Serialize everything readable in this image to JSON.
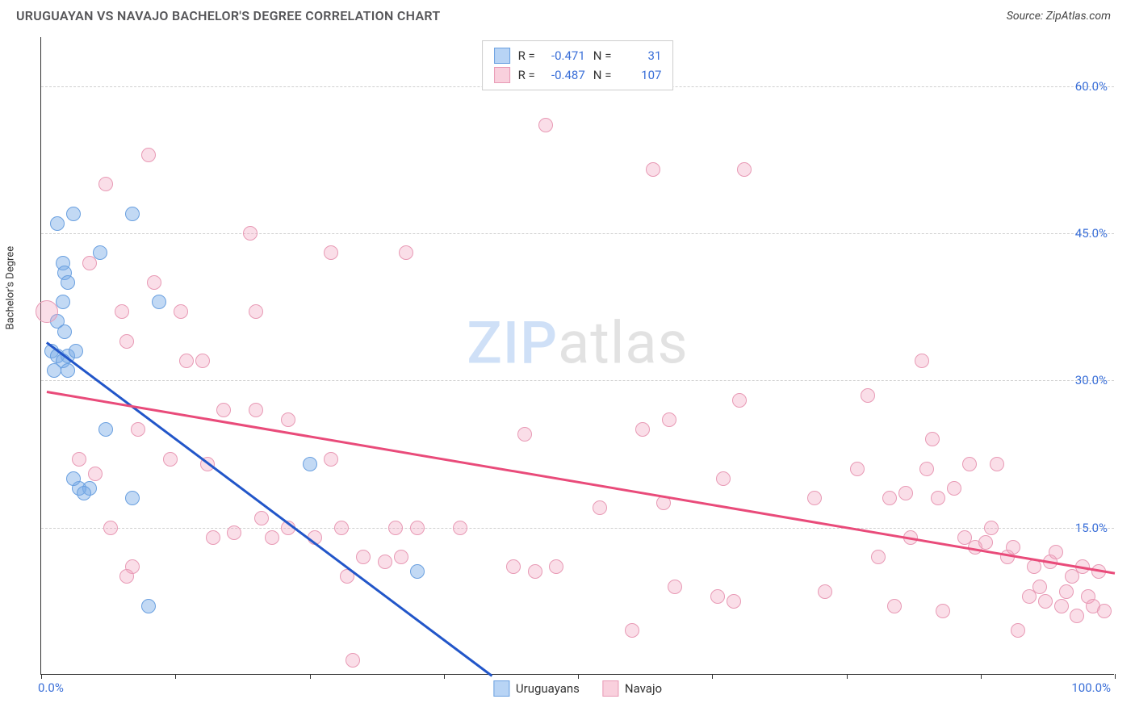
{
  "header": {
    "title": "URUGUAYAN VS NAVAJO BACHELOR'S DEGREE CORRELATION CHART",
    "source": "Source: ZipAtlas.com"
  },
  "chart": {
    "type": "scatter",
    "y_axis_label": "Bachelor's Degree",
    "background_color": "#ffffff",
    "grid_color": "#d0d0d0",
    "axis_color": "#333333",
    "xlim": [
      0,
      100
    ],
    "ylim": [
      0,
      65
    ],
    "y_ticks": [
      15,
      30,
      45,
      60
    ],
    "y_tick_labels": [
      "15.0%",
      "30.0%",
      "45.0%",
      "60.0%"
    ],
    "x_tick_positions": [
      0,
      12.5,
      25,
      37.5,
      50,
      62.5,
      75,
      87.5,
      100
    ],
    "x_tick_labels_visible": {
      "0": "0.0%",
      "100": "100.0%"
    },
    "tick_label_color": "#3a6fd8",
    "tick_label_fontsize": 15,
    "axis_label_fontsize": 13,
    "watermark": {
      "text_a": "ZIP",
      "text_b": "atlas",
      "color_a": "#cfe0f7",
      "color_b": "#e2e2e2",
      "fontsize": 72
    },
    "series": [
      {
        "name": "Uruguayans",
        "fill_color": "rgba(120,170,230,0.45)",
        "stroke_color": "#6aa0e0",
        "swatch_fill": "#b8d4f5",
        "swatch_border": "#6aa0e0",
        "marker_radius": 9,
        "trend": {
          "x1": 0.5,
          "y1": 34,
          "x2": 42,
          "y2": 0,
          "color": "#2256c9",
          "width": 2.5
        },
        "stats": {
          "R": "-0.471",
          "N": "31"
        },
        "points": [
          {
            "x": 3,
            "y": 47,
            "r": 9
          },
          {
            "x": 1.5,
            "y": 46,
            "r": 9
          },
          {
            "x": 8.5,
            "y": 47,
            "r": 9
          },
          {
            "x": 2,
            "y": 42,
            "r": 9
          },
          {
            "x": 2.2,
            "y": 41,
            "r": 9
          },
          {
            "x": 2.5,
            "y": 40,
            "r": 9
          },
          {
            "x": 5.5,
            "y": 43,
            "r": 9
          },
          {
            "x": 2,
            "y": 38,
            "r": 9
          },
          {
            "x": 1.5,
            "y": 36,
            "r": 9
          },
          {
            "x": 2.2,
            "y": 35,
            "r": 9
          },
          {
            "x": 1,
            "y": 33,
            "r": 9
          },
          {
            "x": 1.5,
            "y": 32.5,
            "r": 9
          },
          {
            "x": 2.5,
            "y": 32.5,
            "r": 9
          },
          {
            "x": 3.2,
            "y": 33,
            "r": 9
          },
          {
            "x": 2,
            "y": 32,
            "r": 9
          },
          {
            "x": 1.2,
            "y": 31,
            "r": 9
          },
          {
            "x": 2.5,
            "y": 31,
            "r": 9
          },
          {
            "x": 11,
            "y": 38,
            "r": 9
          },
          {
            "x": 6,
            "y": 25,
            "r": 9
          },
          {
            "x": 4.5,
            "y": 19,
            "r": 9
          },
          {
            "x": 3.5,
            "y": 19,
            "r": 9
          },
          {
            "x": 4,
            "y": 18.5,
            "r": 9
          },
          {
            "x": 8.5,
            "y": 18,
            "r": 9
          },
          {
            "x": 3,
            "y": 20,
            "r": 9
          },
          {
            "x": 25,
            "y": 21.5,
            "r": 9
          },
          {
            "x": 35,
            "y": 10.5,
            "r": 9
          },
          {
            "x": 10,
            "y": 7,
            "r": 9
          }
        ]
      },
      {
        "name": "Navajo",
        "fill_color": "rgba(240,160,190,0.35)",
        "stroke_color": "#e89ab5",
        "swatch_fill": "#f9d0dd",
        "swatch_border": "#e89ab5",
        "marker_radius": 9,
        "trend": {
          "x1": 0.5,
          "y1": 29,
          "x2": 100,
          "y2": 10.5,
          "color": "#e94b7a",
          "width": 2.5
        },
        "stats": {
          "R": "-0.487",
          "N": "107"
        },
        "points": [
          {
            "x": 0.5,
            "y": 37,
            "r": 14
          },
          {
            "x": 4.5,
            "y": 42,
            "r": 9
          },
          {
            "x": 10,
            "y": 53,
            "r": 9
          },
          {
            "x": 6,
            "y": 50,
            "r": 9
          },
          {
            "x": 10.5,
            "y": 40,
            "r": 9
          },
          {
            "x": 8,
            "y": 34,
            "r": 9
          },
          {
            "x": 7.5,
            "y": 37,
            "r": 9
          },
          {
            "x": 9,
            "y": 25,
            "r": 9
          },
          {
            "x": 3.5,
            "y": 22,
            "r": 9
          },
          {
            "x": 5,
            "y": 20.5,
            "r": 9
          },
          {
            "x": 6.5,
            "y": 15,
            "r": 9
          },
          {
            "x": 8.5,
            "y": 11,
            "r": 9
          },
          {
            "x": 8,
            "y": 10,
            "r": 9
          },
          {
            "x": 13,
            "y": 37,
            "r": 9
          },
          {
            "x": 13.5,
            "y": 32,
            "r": 9
          },
          {
            "x": 12,
            "y": 22,
            "r": 9
          },
          {
            "x": 15,
            "y": 32,
            "r": 9
          },
          {
            "x": 15.5,
            "y": 21.5,
            "r": 9
          },
          {
            "x": 16,
            "y": 14,
            "r": 9
          },
          {
            "x": 17,
            "y": 27,
            "r": 9
          },
          {
            "x": 18,
            "y": 14.5,
            "r": 9
          },
          {
            "x": 19.5,
            "y": 45,
            "r": 9
          },
          {
            "x": 20,
            "y": 37,
            "r": 9
          },
          {
            "x": 20,
            "y": 27,
            "r": 9
          },
          {
            "x": 20.5,
            "y": 16,
            "r": 9
          },
          {
            "x": 21.5,
            "y": 14,
            "r": 9
          },
          {
            "x": 23,
            "y": 26,
            "r": 9
          },
          {
            "x": 23,
            "y": 15,
            "r": 9
          },
          {
            "x": 25.5,
            "y": 14,
            "r": 9
          },
          {
            "x": 27,
            "y": 22,
            "r": 9
          },
          {
            "x": 27,
            "y": 43,
            "r": 9
          },
          {
            "x": 28,
            "y": 15,
            "r": 9
          },
          {
            "x": 28.5,
            "y": 10,
            "r": 9
          },
          {
            "x": 29,
            "y": 1.5,
            "r": 9
          },
          {
            "x": 30,
            "y": 12,
            "r": 9
          },
          {
            "x": 32,
            "y": 11.5,
            "r": 9
          },
          {
            "x": 33,
            "y": 15,
            "r": 9
          },
          {
            "x": 33.5,
            "y": 12,
            "r": 9
          },
          {
            "x": 34,
            "y": 43,
            "r": 9
          },
          {
            "x": 35,
            "y": 15,
            "r": 9
          },
          {
            "x": 39,
            "y": 15,
            "r": 9
          },
          {
            "x": 44,
            "y": 11,
            "r": 9
          },
          {
            "x": 45,
            "y": 24.5,
            "r": 9
          },
          {
            "x": 46,
            "y": 10.5,
            "r": 9
          },
          {
            "x": 47,
            "y": 56,
            "r": 9
          },
          {
            "x": 48,
            "y": 11,
            "r": 9
          },
          {
            "x": 52,
            "y": 17,
            "r": 9
          },
          {
            "x": 55,
            "y": 4.5,
            "r": 9
          },
          {
            "x": 56,
            "y": 25,
            "r": 9
          },
          {
            "x": 57,
            "y": 51.5,
            "r": 9
          },
          {
            "x": 58,
            "y": 17.5,
            "r": 9
          },
          {
            "x": 58.5,
            "y": 26,
            "r": 9
          },
          {
            "x": 59,
            "y": 9,
            "r": 9
          },
          {
            "x": 63,
            "y": 8,
            "r": 9
          },
          {
            "x": 63.5,
            "y": 20,
            "r": 9
          },
          {
            "x": 64.5,
            "y": 7.5,
            "r": 9
          },
          {
            "x": 65,
            "y": 28,
            "r": 9
          },
          {
            "x": 65.5,
            "y": 51.5,
            "r": 9
          },
          {
            "x": 72,
            "y": 18,
            "r": 9
          },
          {
            "x": 73,
            "y": 8.5,
            "r": 9
          },
          {
            "x": 76,
            "y": 21,
            "r": 9
          },
          {
            "x": 77,
            "y": 28.5,
            "r": 9
          },
          {
            "x": 78,
            "y": 12,
            "r": 9
          },
          {
            "x": 79,
            "y": 18,
            "r": 9
          },
          {
            "x": 79.5,
            "y": 7,
            "r": 9
          },
          {
            "x": 80.5,
            "y": 18.5,
            "r": 9
          },
          {
            "x": 81,
            "y": 14,
            "r": 9
          },
          {
            "x": 82,
            "y": 32,
            "r": 9
          },
          {
            "x": 82.5,
            "y": 21,
            "r": 9
          },
          {
            "x": 83,
            "y": 24,
            "r": 9
          },
          {
            "x": 83.5,
            "y": 18,
            "r": 9
          },
          {
            "x": 84,
            "y": 6.5,
            "r": 9
          },
          {
            "x": 85,
            "y": 19,
            "r": 9
          },
          {
            "x": 86,
            "y": 14,
            "r": 9
          },
          {
            "x": 86.5,
            "y": 21.5,
            "r": 9
          },
          {
            "x": 87,
            "y": 13,
            "r": 9
          },
          {
            "x": 88,
            "y": 13.5,
            "r": 9
          },
          {
            "x": 88.5,
            "y": 15,
            "r": 9
          },
          {
            "x": 89,
            "y": 21.5,
            "r": 9
          },
          {
            "x": 90,
            "y": 12,
            "r": 9
          },
          {
            "x": 90.5,
            "y": 13,
            "r": 9
          },
          {
            "x": 91,
            "y": 4.5,
            "r": 9
          },
          {
            "x": 92,
            "y": 8,
            "r": 9
          },
          {
            "x": 92.5,
            "y": 11,
            "r": 9
          },
          {
            "x": 93,
            "y": 9,
            "r": 9
          },
          {
            "x": 93.5,
            "y": 7.5,
            "r": 9
          },
          {
            "x": 94,
            "y": 11.5,
            "r": 9
          },
          {
            "x": 94.5,
            "y": 12.5,
            "r": 9
          },
          {
            "x": 95,
            "y": 7,
            "r": 9
          },
          {
            "x": 95.5,
            "y": 8.5,
            "r": 9
          },
          {
            "x": 96,
            "y": 10,
            "r": 9
          },
          {
            "x": 96.5,
            "y": 6,
            "r": 9
          },
          {
            "x": 97,
            "y": 11,
            "r": 9
          },
          {
            "x": 97.5,
            "y": 8,
            "r": 9
          },
          {
            "x": 98,
            "y": 7,
            "r": 9
          },
          {
            "x": 98.5,
            "y": 10.5,
            "r": 9
          },
          {
            "x": 99,
            "y": 6.5,
            "r": 9
          }
        ]
      }
    ],
    "legend": {
      "items": [
        {
          "label": "Uruguayans",
          "fill": "#b8d4f5",
          "border": "#6aa0e0"
        },
        {
          "label": "Navajo",
          "fill": "#f9d0dd",
          "border": "#e89ab5"
        }
      ]
    },
    "stats_box": {
      "label_R": "R =",
      "label_N": "N ="
    }
  }
}
